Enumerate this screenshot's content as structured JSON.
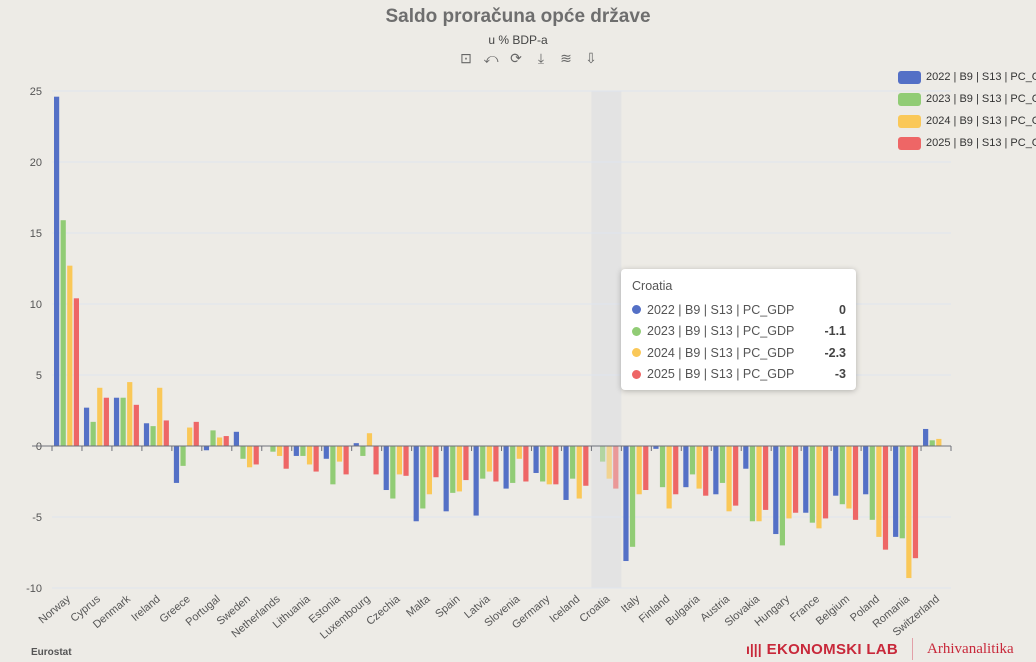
{
  "header": {
    "title": "Saldo proračuna opće države",
    "subtitle": "u % BDP-a"
  },
  "toolbar": [
    {
      "icon": "zoom-icon",
      "glyph": "⊡"
    },
    {
      "icon": "zoom-reset-icon",
      "glyph": "⤺"
    },
    {
      "icon": "restore-icon",
      "glyph": "⟳"
    },
    {
      "icon": "download-icon",
      "glyph": "⤓"
    },
    {
      "icon": "data-view-icon",
      "glyph": "≋"
    },
    {
      "icon": "save-image-icon",
      "glyph": "⇩"
    }
  ],
  "chart_data": {
    "type": "bar",
    "title": "Saldo proračuna opće države",
    "subtitle": "u % BDP-a",
    "xlabel": "",
    "ylabel": "",
    "ylim": [
      -10,
      25
    ],
    "yticks": [
      -10,
      -5,
      0,
      5,
      10,
      15,
      20,
      25
    ],
    "grid": true,
    "legend_placement": "top-right",
    "categories": [
      "Norway",
      "Cyprus",
      "Denmark",
      "Ireland",
      "Greece",
      "Portugal",
      "Sweden",
      "Netherlands",
      "Lithuania",
      "Estonia",
      "Luxembourg",
      "Czechia",
      "Malta",
      "Spain",
      "Latvia",
      "Slovenia",
      "Germany",
      "Iceland",
      "Croatia",
      "Italy",
      "Finland",
      "Bulgaria",
      "Austria",
      "Slovakia",
      "Hungary",
      "France",
      "Belgium",
      "Poland",
      "Romania",
      "Switzerland"
    ],
    "series": [
      {
        "name": "2022 | B9 | S13 | PC_GDP",
        "color": "#5470c6",
        "values": [
          24.6,
          2.7,
          3.4,
          1.6,
          -2.6,
          -0.3,
          1.0,
          0,
          -0.7,
          -0.9,
          0.2,
          -3.1,
          -5.3,
          -4.6,
          -4.9,
          -3.0,
          -1.9,
          -3.8,
          0,
          -8.1,
          -0.2,
          -2.9,
          -3.4,
          -1.6,
          -6.2,
          -4.7,
          -3.5,
          -3.4,
          -6.4,
          1.2
        ]
      },
      {
        "name": "2023 | B9 | S13 | PC_GDP",
        "color": "#91cc75",
        "values": [
          15.9,
          1.7,
          3.4,
          1.4,
          -1.4,
          1.1,
          -0.9,
          -0.4,
          -0.7,
          -2.7,
          -0.7,
          -3.7,
          -4.4,
          -3.3,
          -2.3,
          -2.6,
          -2.5,
          -2.3,
          -1.1,
          -7.1,
          -2.9,
          -2.0,
          -2.6,
          -5.3,
          -7.0,
          -5.4,
          -4.1,
          -5.2,
          -6.5,
          0.4
        ]
      },
      {
        "name": "2024 | B9 | S13 | PC_GDP",
        "color": "#fac858",
        "values": [
          12.7,
          4.1,
          4.5,
          4.1,
          1.3,
          0.6,
          -1.5,
          -0.7,
          -1.3,
          -1.1,
          0.9,
          -2.0,
          -3.4,
          -3.2,
          -1.8,
          -0.9,
          -2.7,
          -3.7,
          -2.3,
          -3.4,
          -4.4,
          -3.0,
          -4.6,
          -5.3,
          -5.1,
          -5.8,
          -4.4,
          -6.4,
          -9.3,
          0.5
        ]
      },
      {
        "name": "2025 | B9 | S13 | PC_GDP",
        "color": "#ee6666",
        "values": [
          10.4,
          3.4,
          2.9,
          1.8,
          1.7,
          0.7,
          -1.3,
          -1.6,
          -1.8,
          -2.0,
          -2.0,
          -2.1,
          -2.2,
          -2.4,
          -2.5,
          -2.5,
          -2.7,
          -2.8,
          -3,
          -3.1,
          -3.4,
          -3.5,
          -4.2,
          -4.5,
          -4.7,
          -5.1,
          -5.2,
          -7.3,
          -7.9,
          0
        ]
      }
    ],
    "highlighted_category": "Croatia"
  },
  "tooltip": {
    "title": "Croatia",
    "rows": [
      {
        "name": "2022 | B9 | S13 | PC_GDP",
        "value": "0",
        "color": "#5470c6"
      },
      {
        "name": "2023 | B9 | S13 | PC_GDP",
        "value": "-1.1",
        "color": "#91cc75"
      },
      {
        "name": "2024 | B9 | S13 | PC_GDP",
        "value": "-2.3",
        "color": "#fac858"
      },
      {
        "name": "2025 | B9 | S13 | PC_GDP",
        "value": "-3",
        "color": "#ee6666"
      }
    ]
  },
  "footer": {
    "source": "Eurostat",
    "brand": "EKONOMSKI LAB",
    "brand2": "Arhivanalitika"
  }
}
